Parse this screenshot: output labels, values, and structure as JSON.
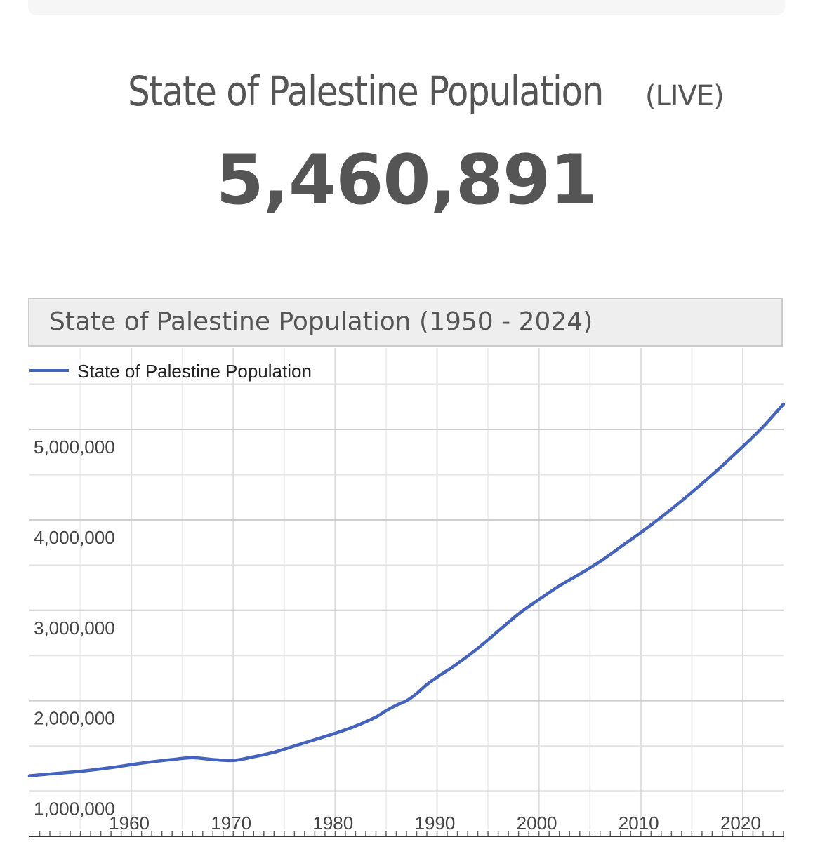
{
  "header": {
    "title": "State of Palestine Population",
    "live_label": "(LIVE)",
    "counter": "5,460,891"
  },
  "chart_data": {
    "type": "line",
    "title": "State of Palestine Population (1950 - 2024)",
    "xlabel": "",
    "ylabel": "",
    "x_ticks": [
      "1960",
      "1970",
      "1980",
      "1990",
      "2000",
      "2010",
      "2020"
    ],
    "y_ticks": [
      "1,000,000",
      "2,000,000",
      "3,000,000",
      "4,000,000",
      "5,000,000"
    ],
    "xlim": [
      1950,
      2024
    ],
    "ylim": [
      500000,
      5900000
    ],
    "grid": true,
    "legend_position": "top-left",
    "series": [
      {
        "name": "State of Palestine Population",
        "color": "#4363be",
        "x": [
          1950,
          1952,
          1955,
          1958,
          1961,
          1964,
          1966,
          1968,
          1970,
          1972,
          1974,
          1976,
          1978,
          1980,
          1982,
          1984,
          1985,
          1986,
          1987,
          1988,
          1989,
          1990,
          1992,
          1994,
          1996,
          1998,
          2000,
          2002,
          2004,
          2006,
          2008,
          2010,
          2012,
          2014,
          2016,
          2018,
          2020,
          2022,
          2024
        ],
        "values": [
          1170000,
          1190000,
          1220000,
          1260000,
          1310000,
          1350000,
          1370000,
          1350000,
          1340000,
          1380000,
          1430000,
          1500000,
          1570000,
          1640000,
          1720000,
          1820000,
          1890000,
          1950000,
          2000000,
          2080000,
          2180000,
          2260000,
          2410000,
          2580000,
          2770000,
          2960000,
          3120000,
          3270000,
          3400000,
          3540000,
          3700000,
          3860000,
          4030000,
          4210000,
          4400000,
          4600000,
          4810000,
          5030000,
          5280000
        ]
      }
    ]
  }
}
